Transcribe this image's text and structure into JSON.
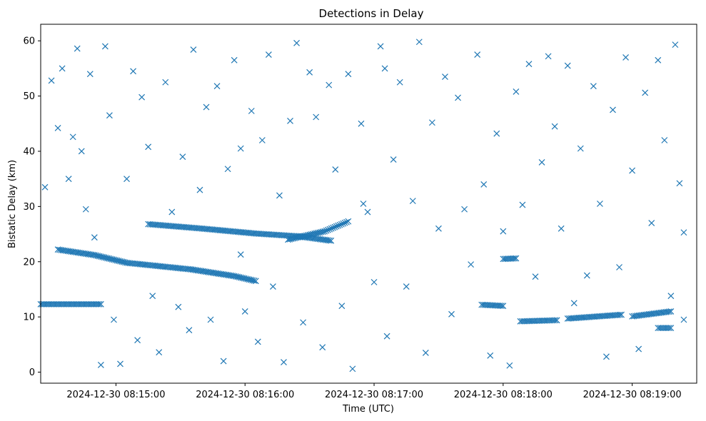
{
  "chart_data": {
    "type": "scatter",
    "title": "Detections in Delay",
    "xlabel": "Time (UTC)",
    "ylabel": "Bistatic Delay (km)",
    "x_unit": "datetime",
    "xlim": [
      "2024-12-30 08:14:25",
      "2024-12-30 08:19:30"
    ],
    "ylim": [
      -2,
      63
    ],
    "x_ticks": [
      "2024-12-30 08:15:00",
      "2024-12-30 08:16:00",
      "2024-12-30 08:17:00",
      "2024-12-30 08:18:00",
      "2024-12-30 08:19:00"
    ],
    "y_ticks": [
      0,
      10,
      20,
      30,
      40,
      50,
      60
    ],
    "marker": "x",
    "color": "#1f77b4",
    "grid": false,
    "legend": "none",
    "series": [
      {
        "tracks": [
          {
            "x": [
              "2024-12-30 08:14:33",
              "2024-12-30 08:14:50",
              "2024-12-30 08:15:05",
              "2024-12-30 08:15:35",
              "2024-12-30 08:15:55",
              "2024-12-30 08:16:05"
            ],
            "y": [
              22.2,
              21.2,
              19.8,
              18.6,
              17.4,
              16.5
            ]
          },
          {
            "x": [
              "2024-12-30 08:15:15",
              "2024-12-30 08:15:40",
              "2024-12-30 08:16:05",
              "2024-12-30 08:16:25",
              "2024-12-30 08:16:40"
            ],
            "y": [
              26.8,
              26.0,
              25.1,
              24.6,
              23.8
            ]
          },
          {
            "x": [
              "2024-12-30 08:16:20",
              "2024-12-30 08:16:37",
              "2024-12-30 08:16:48"
            ],
            "y": [
              24.0,
              25.5,
              27.3
            ]
          },
          {
            "x": [
              "2024-12-30 08:14:25",
              "2024-12-30 08:14:53"
            ],
            "y": [
              12.3,
              12.3
            ]
          },
          {
            "x": [
              "2024-12-30 08:17:50",
              "2024-12-30 08:18:00"
            ],
            "y": [
              12.2,
              12.0
            ]
          },
          {
            "x": [
              "2024-12-30 08:18:00",
              "2024-12-30 08:18:06"
            ],
            "y": [
              20.5,
              20.6
            ]
          },
          {
            "x": [
              "2024-12-30 08:18:08",
              "2024-12-30 08:18:25"
            ],
            "y": [
              9.2,
              9.4
            ]
          },
          {
            "x": [
              "2024-12-30 08:18:30",
              "2024-12-30 08:18:55"
            ],
            "y": [
              9.7,
              10.4
            ]
          },
          {
            "x": [
              "2024-12-30 08:19:00",
              "2024-12-30 08:19:18"
            ],
            "y": [
              10.1,
              11.0
            ]
          },
          {
            "x": [
              "2024-12-30 08:19:12",
              "2024-12-30 08:19:18"
            ],
            "y": [
              8.0,
              8.0
            ]
          }
        ],
        "points": [
          [
            "2024-12-30 08:14:27",
            33.5
          ],
          [
            "2024-12-30 08:14:30",
            52.8
          ],
          [
            "2024-12-30 08:14:33",
            44.2
          ],
          [
            "2024-12-30 08:14:35",
            55.0
          ],
          [
            "2024-12-30 08:14:38",
            35.0
          ],
          [
            "2024-12-30 08:14:40",
            42.6
          ],
          [
            "2024-12-30 08:14:42",
            58.6
          ],
          [
            "2024-12-30 08:14:44",
            40.0
          ],
          [
            "2024-12-30 08:14:46",
            29.5
          ],
          [
            "2024-12-30 08:14:48",
            54.0
          ],
          [
            "2024-12-30 08:14:50",
            24.4
          ],
          [
            "2024-12-30 08:14:53",
            1.3
          ],
          [
            "2024-12-30 08:14:55",
            59.0
          ],
          [
            "2024-12-30 08:14:57",
            46.5
          ],
          [
            "2024-12-30 08:14:59",
            9.5
          ],
          [
            "2024-12-30 08:15:02",
            1.5
          ],
          [
            "2024-12-30 08:15:05",
            35.0
          ],
          [
            "2024-12-30 08:15:08",
            54.5
          ],
          [
            "2024-12-30 08:15:10",
            5.8
          ],
          [
            "2024-12-30 08:15:12",
            49.8
          ],
          [
            "2024-12-30 08:15:15",
            40.8
          ],
          [
            "2024-12-30 08:15:17",
            13.8
          ],
          [
            "2024-12-30 08:15:20",
            3.6
          ],
          [
            "2024-12-30 08:15:23",
            52.5
          ],
          [
            "2024-12-30 08:15:26",
            29.0
          ],
          [
            "2024-12-30 08:15:29",
            11.8
          ],
          [
            "2024-12-30 08:15:31",
            39.0
          ],
          [
            "2024-12-30 08:15:34",
            7.6
          ],
          [
            "2024-12-30 08:15:36",
            58.4
          ],
          [
            "2024-12-30 08:15:39",
            33.0
          ],
          [
            "2024-12-30 08:15:42",
            48.0
          ],
          [
            "2024-12-30 08:15:44",
            9.5
          ],
          [
            "2024-12-30 08:15:47",
            51.8
          ],
          [
            "2024-12-30 08:15:50",
            2.0
          ],
          [
            "2024-12-30 08:15:52",
            36.8
          ],
          [
            "2024-12-30 08:15:55",
            56.5
          ],
          [
            "2024-12-30 08:15:58",
            21.3
          ],
          [
            "2024-12-30 08:16:00",
            11.0
          ],
          [
            "2024-12-30 08:16:03",
            47.3
          ],
          [
            "2024-12-30 08:16:06",
            5.5
          ],
          [
            "2024-12-30 08:16:08",
            42.0
          ],
          [
            "2024-12-30 08:16:11",
            57.5
          ],
          [
            "2024-12-30 08:16:13",
            15.5
          ],
          [
            "2024-12-30 08:16:16",
            32.0
          ],
          [
            "2024-12-30 08:16:18",
            1.8
          ],
          [
            "2024-12-30 08:16:21",
            45.5
          ],
          [
            "2024-12-30 08:16:24",
            59.6
          ],
          [
            "2024-12-30 08:16:27",
            9.0
          ],
          [
            "2024-12-30 08:16:30",
            54.3
          ],
          [
            "2024-12-30 08:16:33",
            46.2
          ],
          [
            "2024-12-30 08:16:36",
            4.5
          ],
          [
            "2024-12-30 08:16:39",
            52.0
          ],
          [
            "2024-12-30 08:16:42",
            36.7
          ],
          [
            "2024-12-30 08:16:45",
            12.0
          ],
          [
            "2024-12-30 08:16:48",
            54.0
          ],
          [
            "2024-12-30 08:16:50",
            0.6
          ],
          [
            "2024-12-30 08:16:54",
            45.0
          ],
          [
            "2024-12-30 08:16:57",
            29.0
          ],
          [
            "2024-12-30 08:17:00",
            16.3
          ],
          [
            "2024-12-30 08:17:03",
            59.0
          ],
          [
            "2024-12-30 08:17:06",
            6.5
          ],
          [
            "2024-12-30 08:17:09",
            38.5
          ],
          [
            "2024-12-30 08:17:12",
            52.5
          ],
          [
            "2024-12-30 08:17:15",
            15.5
          ],
          [
            "2024-12-30 08:17:18",
            31.0
          ],
          [
            "2024-12-30 08:17:21",
            59.8
          ],
          [
            "2024-12-30 08:17:24",
            3.5
          ],
          [
            "2024-12-30 08:17:27",
            45.2
          ],
          [
            "2024-12-30 08:17:30",
            26.0
          ],
          [
            "2024-12-30 08:17:33",
            53.5
          ],
          [
            "2024-12-30 08:17:36",
            10.5
          ],
          [
            "2024-12-30 08:17:39",
            49.7
          ],
          [
            "2024-12-30 08:17:42",
            29.5
          ],
          [
            "2024-12-30 08:17:45",
            19.5
          ],
          [
            "2024-12-30 08:17:48",
            57.5
          ],
          [
            "2024-12-30 08:17:51",
            34.0
          ],
          [
            "2024-12-30 08:17:54",
            3.0
          ],
          [
            "2024-12-30 08:17:57",
            43.2
          ],
          [
            "2024-12-30 08:18:00",
            25.5
          ],
          [
            "2024-12-30 08:18:03",
            1.2
          ],
          [
            "2024-12-30 08:18:06",
            50.8
          ],
          [
            "2024-12-30 08:18:09",
            30.3
          ],
          [
            "2024-12-30 08:18:12",
            55.8
          ],
          [
            "2024-12-30 08:18:15",
            17.3
          ],
          [
            "2024-12-30 08:18:18",
            38.0
          ],
          [
            "2024-12-30 08:18:21",
            57.2
          ],
          [
            "2024-12-30 08:18:24",
            44.5
          ],
          [
            "2024-12-30 08:18:27",
            26.0
          ],
          [
            "2024-12-30 08:18:30",
            55.5
          ],
          [
            "2024-12-30 08:18:33",
            12.5
          ],
          [
            "2024-12-30 08:18:36",
            40.5
          ],
          [
            "2024-12-30 08:18:39",
            17.5
          ],
          [
            "2024-12-30 08:18:42",
            51.8
          ],
          [
            "2024-12-30 08:18:45",
            30.5
          ],
          [
            "2024-12-30 08:18:48",
            2.8
          ],
          [
            "2024-12-30 08:18:51",
            47.5
          ],
          [
            "2024-12-30 08:18:54",
            19.0
          ],
          [
            "2024-12-30 08:18:57",
            57.0
          ],
          [
            "2024-12-30 08:19:00",
            36.5
          ],
          [
            "2024-12-30 08:19:03",
            4.2
          ],
          [
            "2024-12-30 08:19:06",
            50.6
          ],
          [
            "2024-12-30 08:19:09",
            27.0
          ],
          [
            "2024-12-30 08:19:12",
            56.5
          ],
          [
            "2024-12-30 08:19:15",
            42.0
          ],
          [
            "2024-12-30 08:19:18",
            13.8
          ],
          [
            "2024-12-30 08:19:20",
            59.3
          ],
          [
            "2024-12-30 08:19:22",
            34.2
          ],
          [
            "2024-12-30 08:19:24",
            25.3
          ],
          [
            "2024-12-30 08:19:24",
            9.5
          ],
          [
            "2024-12-30 08:17:05",
            55.0
          ],
          [
            "2024-12-30 08:16:55",
            30.5
          ],
          [
            "2024-12-30 08:15:58",
            40.5
          ]
        ]
      }
    ]
  }
}
